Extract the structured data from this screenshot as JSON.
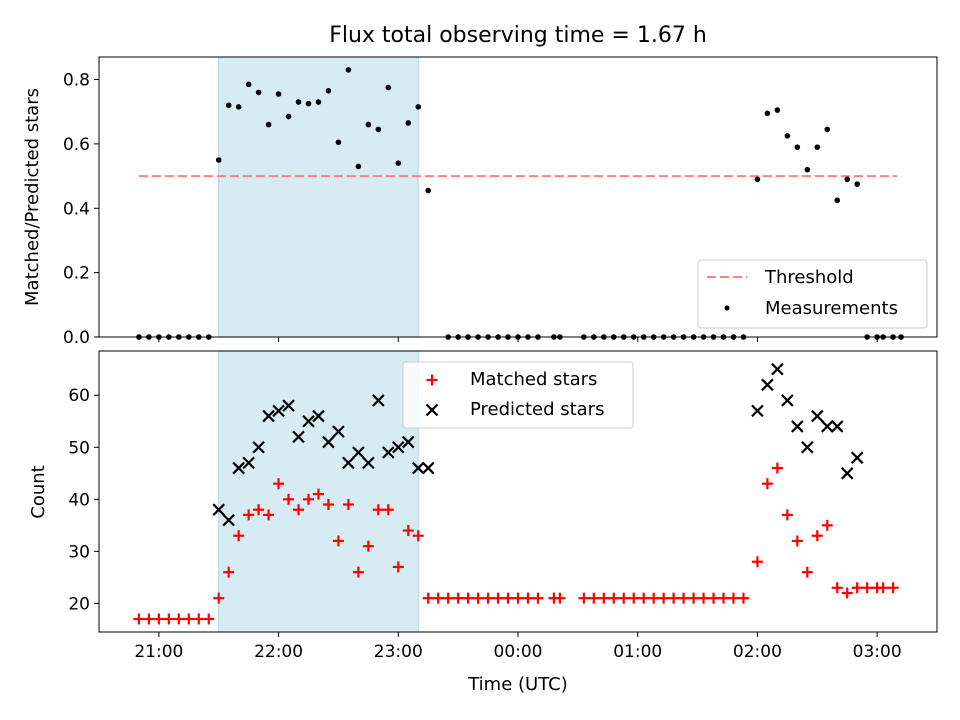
{
  "title": "Flux total observing time = 1.67 h",
  "colors": {
    "threshold": "#ff7f7f",
    "measurements": "#000000",
    "matched": "#ff0000",
    "predicted": "#000000",
    "shade": "#add8e6"
  },
  "chart_data": [
    {
      "type": "scatter",
      "panel": "top",
      "ylabel": "Matched/Predicted stars",
      "xlim": [
        "20:30",
        "03:30"
      ],
      "ylim": [
        0,
        0.87
      ],
      "yticks": [
        "0.0",
        "0.2",
        "0.4",
        "0.6",
        "0.8"
      ],
      "shaded_interval": [
        "21:30",
        "23:10"
      ],
      "legend_placement": "lower-right",
      "threshold": {
        "name": "Threshold",
        "value": 0.5,
        "x_range": [
          "20:50",
          "03:10"
        ],
        "style": "dashed"
      },
      "series": [
        {
          "name": "Measurements",
          "marker": "dot",
          "points": [
            [
              "20:50",
              0
            ],
            [
              "20:55",
              0
            ],
            [
              "21:00",
              0
            ],
            [
              "21:05",
              0
            ],
            [
              "21:10",
              0
            ],
            [
              "21:15",
              0
            ],
            [
              "21:20",
              0
            ],
            [
              "21:25",
              0
            ],
            [
              "21:30",
              0.55
            ],
            [
              "21:35",
              0.72
            ],
            [
              "21:40",
              0.715
            ],
            [
              "21:45",
              0.785
            ],
            [
              "21:50",
              0.76
            ],
            [
              "21:55",
              0.66
            ],
            [
              "22:00",
              0.755
            ],
            [
              "22:05",
              0.685
            ],
            [
              "22:10",
              0.73
            ],
            [
              "22:15",
              0.725
            ],
            [
              "22:20",
              0.73
            ],
            [
              "22:25",
              0.765
            ],
            [
              "22:30",
              0.605
            ],
            [
              "22:35",
              0.83
            ],
            [
              "22:40",
              0.53
            ],
            [
              "22:45",
              0.66
            ],
            [
              "22:50",
              0.645
            ],
            [
              "22:55",
              0.775
            ],
            [
              "23:00",
              0.54
            ],
            [
              "23:05",
              0.665
            ],
            [
              "23:10",
              0.715
            ],
            [
              "23:15",
              0.455
            ],
            [
              "23:25",
              0
            ],
            [
              "23:30",
              0
            ],
            [
              "23:35",
              0
            ],
            [
              "23:40",
              0
            ],
            [
              "23:45",
              0
            ],
            [
              "23:50",
              0
            ],
            [
              "23:55",
              0
            ],
            [
              "00:00",
              0
            ],
            [
              "00:05",
              0
            ],
            [
              "00:10",
              0
            ],
            [
              "00:18",
              0
            ],
            [
              "00:21",
              0
            ],
            [
              "00:33",
              0
            ],
            [
              "00:38",
              0
            ],
            [
              "00:43",
              0
            ],
            [
              "00:48",
              0
            ],
            [
              "00:53",
              0
            ],
            [
              "00:58",
              0
            ],
            [
              "01:03",
              0
            ],
            [
              "01:08",
              0
            ],
            [
              "01:13",
              0
            ],
            [
              "01:18",
              0
            ],
            [
              "01:23",
              0
            ],
            [
              "01:28",
              0
            ],
            [
              "01:33",
              0
            ],
            [
              "01:38",
              0
            ],
            [
              "01:43",
              0
            ],
            [
              "01:48",
              0
            ],
            [
              "01:53",
              0
            ],
            [
              "02:00",
              0.49
            ],
            [
              "02:05",
              0.695
            ],
            [
              "02:10",
              0.705
            ],
            [
              "02:15",
              0.625
            ],
            [
              "02:20",
              0.59
            ],
            [
              "02:25",
              0.52
            ],
            [
              "02:30",
              0.59
            ],
            [
              "02:35",
              0.645
            ],
            [
              "02:40",
              0.425
            ],
            [
              "02:45",
              0.49
            ],
            [
              "02:50",
              0.475
            ],
            [
              "02:55",
              0
            ],
            [
              "03:00",
              0
            ],
            [
              "03:03",
              0
            ],
            [
              "03:08",
              0
            ],
            [
              "03:12",
              0
            ]
          ]
        }
      ]
    },
    {
      "type": "scatter",
      "panel": "bottom",
      "xlabel": "Time (UTC)",
      "ylabel": "Count",
      "xlim": [
        "20:30",
        "03:30"
      ],
      "ylim": [
        14.5,
        68.5
      ],
      "yticks": [
        "20",
        "30",
        "40",
        "50",
        "60"
      ],
      "xticks": [
        "21:00",
        "22:00",
        "23:00",
        "00:00",
        "01:00",
        "02:00",
        "03:00"
      ],
      "shaded_interval": [
        "21:30",
        "23:10"
      ],
      "legend_placement": "upper-center",
      "series": [
        {
          "name": "Matched stars",
          "marker": "plus",
          "points": [
            [
              "20:50",
              17
            ],
            [
              "20:55",
              17
            ],
            [
              "21:00",
              17
            ],
            [
              "21:05",
              17
            ],
            [
              "21:10",
              17
            ],
            [
              "21:15",
              17
            ],
            [
              "21:20",
              17
            ],
            [
              "21:25",
              17
            ],
            [
              "21:30",
              21
            ],
            [
              "21:35",
              26
            ],
            [
              "21:40",
              33
            ],
            [
              "21:45",
              37
            ],
            [
              "21:50",
              38
            ],
            [
              "21:55",
              37
            ],
            [
              "22:00",
              43
            ],
            [
              "22:05",
              40
            ],
            [
              "22:10",
              38
            ],
            [
              "22:15",
              40
            ],
            [
              "22:20",
              41
            ],
            [
              "22:25",
              39
            ],
            [
              "22:30",
              32
            ],
            [
              "22:35",
              39
            ],
            [
              "22:40",
              26
            ],
            [
              "22:45",
              31
            ],
            [
              "22:50",
              38
            ],
            [
              "22:55",
              38
            ],
            [
              "23:00",
              27
            ],
            [
              "23:05",
              34
            ],
            [
              "23:10",
              33
            ],
            [
              "23:15",
              21
            ],
            [
              "23:20",
              21
            ],
            [
              "23:25",
              21
            ],
            [
              "23:30",
              21
            ],
            [
              "23:35",
              21
            ],
            [
              "23:40",
              21
            ],
            [
              "23:45",
              21
            ],
            [
              "23:50",
              21
            ],
            [
              "23:55",
              21
            ],
            [
              "00:00",
              21
            ],
            [
              "00:05",
              21
            ],
            [
              "00:10",
              21
            ],
            [
              "00:18",
              21
            ],
            [
              "00:21",
              21
            ],
            [
              "00:33",
              21
            ],
            [
              "00:38",
              21
            ],
            [
              "00:43",
              21
            ],
            [
              "00:48",
              21
            ],
            [
              "00:53",
              21
            ],
            [
              "00:58",
              21
            ],
            [
              "01:03",
              21
            ],
            [
              "01:08",
              21
            ],
            [
              "01:13",
              21
            ],
            [
              "01:18",
              21
            ],
            [
              "01:23",
              21
            ],
            [
              "01:28",
              21
            ],
            [
              "01:33",
              21
            ],
            [
              "01:38",
              21
            ],
            [
              "01:43",
              21
            ],
            [
              "01:48",
              21
            ],
            [
              "01:53",
              21
            ],
            [
              "02:00",
              28
            ],
            [
              "02:05",
              43
            ],
            [
              "02:10",
              46
            ],
            [
              "02:15",
              37
            ],
            [
              "02:20",
              32
            ],
            [
              "02:25",
              26
            ],
            [
              "02:30",
              33
            ],
            [
              "02:35",
              35
            ],
            [
              "02:40",
              23
            ],
            [
              "02:45",
              22
            ],
            [
              "02:50",
              23
            ],
            [
              "02:55",
              23
            ],
            [
              "03:00",
              23
            ],
            [
              "03:03",
              23
            ],
            [
              "03:08",
              23
            ]
          ]
        },
        {
          "name": "Predicted stars",
          "marker": "x",
          "points": [
            [
              "21:30",
              38
            ],
            [
              "21:35",
              36
            ],
            [
              "21:40",
              46
            ],
            [
              "21:45",
              47
            ],
            [
              "21:50",
              50
            ],
            [
              "21:55",
              56
            ],
            [
              "22:00",
              57
            ],
            [
              "22:05",
              58
            ],
            [
              "22:10",
              52
            ],
            [
              "22:15",
              55
            ],
            [
              "22:20",
              56
            ],
            [
              "22:25",
              51
            ],
            [
              "22:30",
              53
            ],
            [
              "22:35",
              47
            ],
            [
              "22:40",
              49
            ],
            [
              "22:45",
              47
            ],
            [
              "22:50",
              59
            ],
            [
              "22:55",
              49
            ],
            [
              "23:00",
              50
            ],
            [
              "23:05",
              51
            ],
            [
              "23:10",
              46
            ],
            [
              "23:15",
              46
            ],
            [
              "02:00",
              57
            ],
            [
              "02:05",
              62
            ],
            [
              "02:10",
              65
            ],
            [
              "02:15",
              59
            ],
            [
              "02:20",
              54
            ],
            [
              "02:25",
              50
            ],
            [
              "02:30",
              56
            ],
            [
              "02:35",
              54
            ],
            [
              "02:40",
              54
            ],
            [
              "02:45",
              45
            ],
            [
              "02:50",
              48
            ]
          ]
        }
      ]
    }
  ]
}
